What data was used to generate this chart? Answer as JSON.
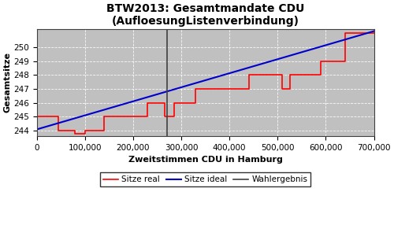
{
  "title": "BTW2013: Gesamtmandate CDU\n(AufloesungListenverbindung)",
  "xlabel": "Zweitstimmen CDU in Hamburg",
  "ylabel": "Gesamtsitze",
  "xlim": [
    0,
    700000
  ],
  "ylim": [
    243.6,
    251.3
  ],
  "yticks": [
    244,
    245,
    246,
    247,
    248,
    249,
    250
  ],
  "wahlergebnis_x": 270000,
  "plot_bg_color": "#c0c0c0",
  "fig_bg_color": "#ffffff",
  "ideal_color": "#0000cc",
  "real_color": "#ff0000",
  "wahlergebnis_color": "#404040",
  "legend_labels": [
    "Sitze real",
    "Sitze ideal",
    "Wahlergebnis"
  ],
  "ideal_line": {
    "x": [
      0,
      700000
    ],
    "y": [
      244.08,
      251.15
    ]
  },
  "real_steps": [
    [
      0,
      245
    ],
    [
      45000,
      244
    ],
    [
      80000,
      243.78
    ],
    [
      100000,
      244
    ],
    [
      140000,
      245
    ],
    [
      200000,
      245
    ],
    [
      230000,
      246
    ],
    [
      265000,
      245
    ],
    [
      285000,
      246
    ],
    [
      315000,
      246
    ],
    [
      330000,
      247
    ],
    [
      380000,
      247
    ],
    [
      440000,
      248
    ],
    [
      485000,
      248
    ],
    [
      510000,
      247
    ],
    [
      525000,
      248
    ],
    [
      590000,
      249
    ],
    [
      610000,
      249
    ],
    [
      640000,
      251
    ],
    [
      700000,
      251
    ]
  ]
}
